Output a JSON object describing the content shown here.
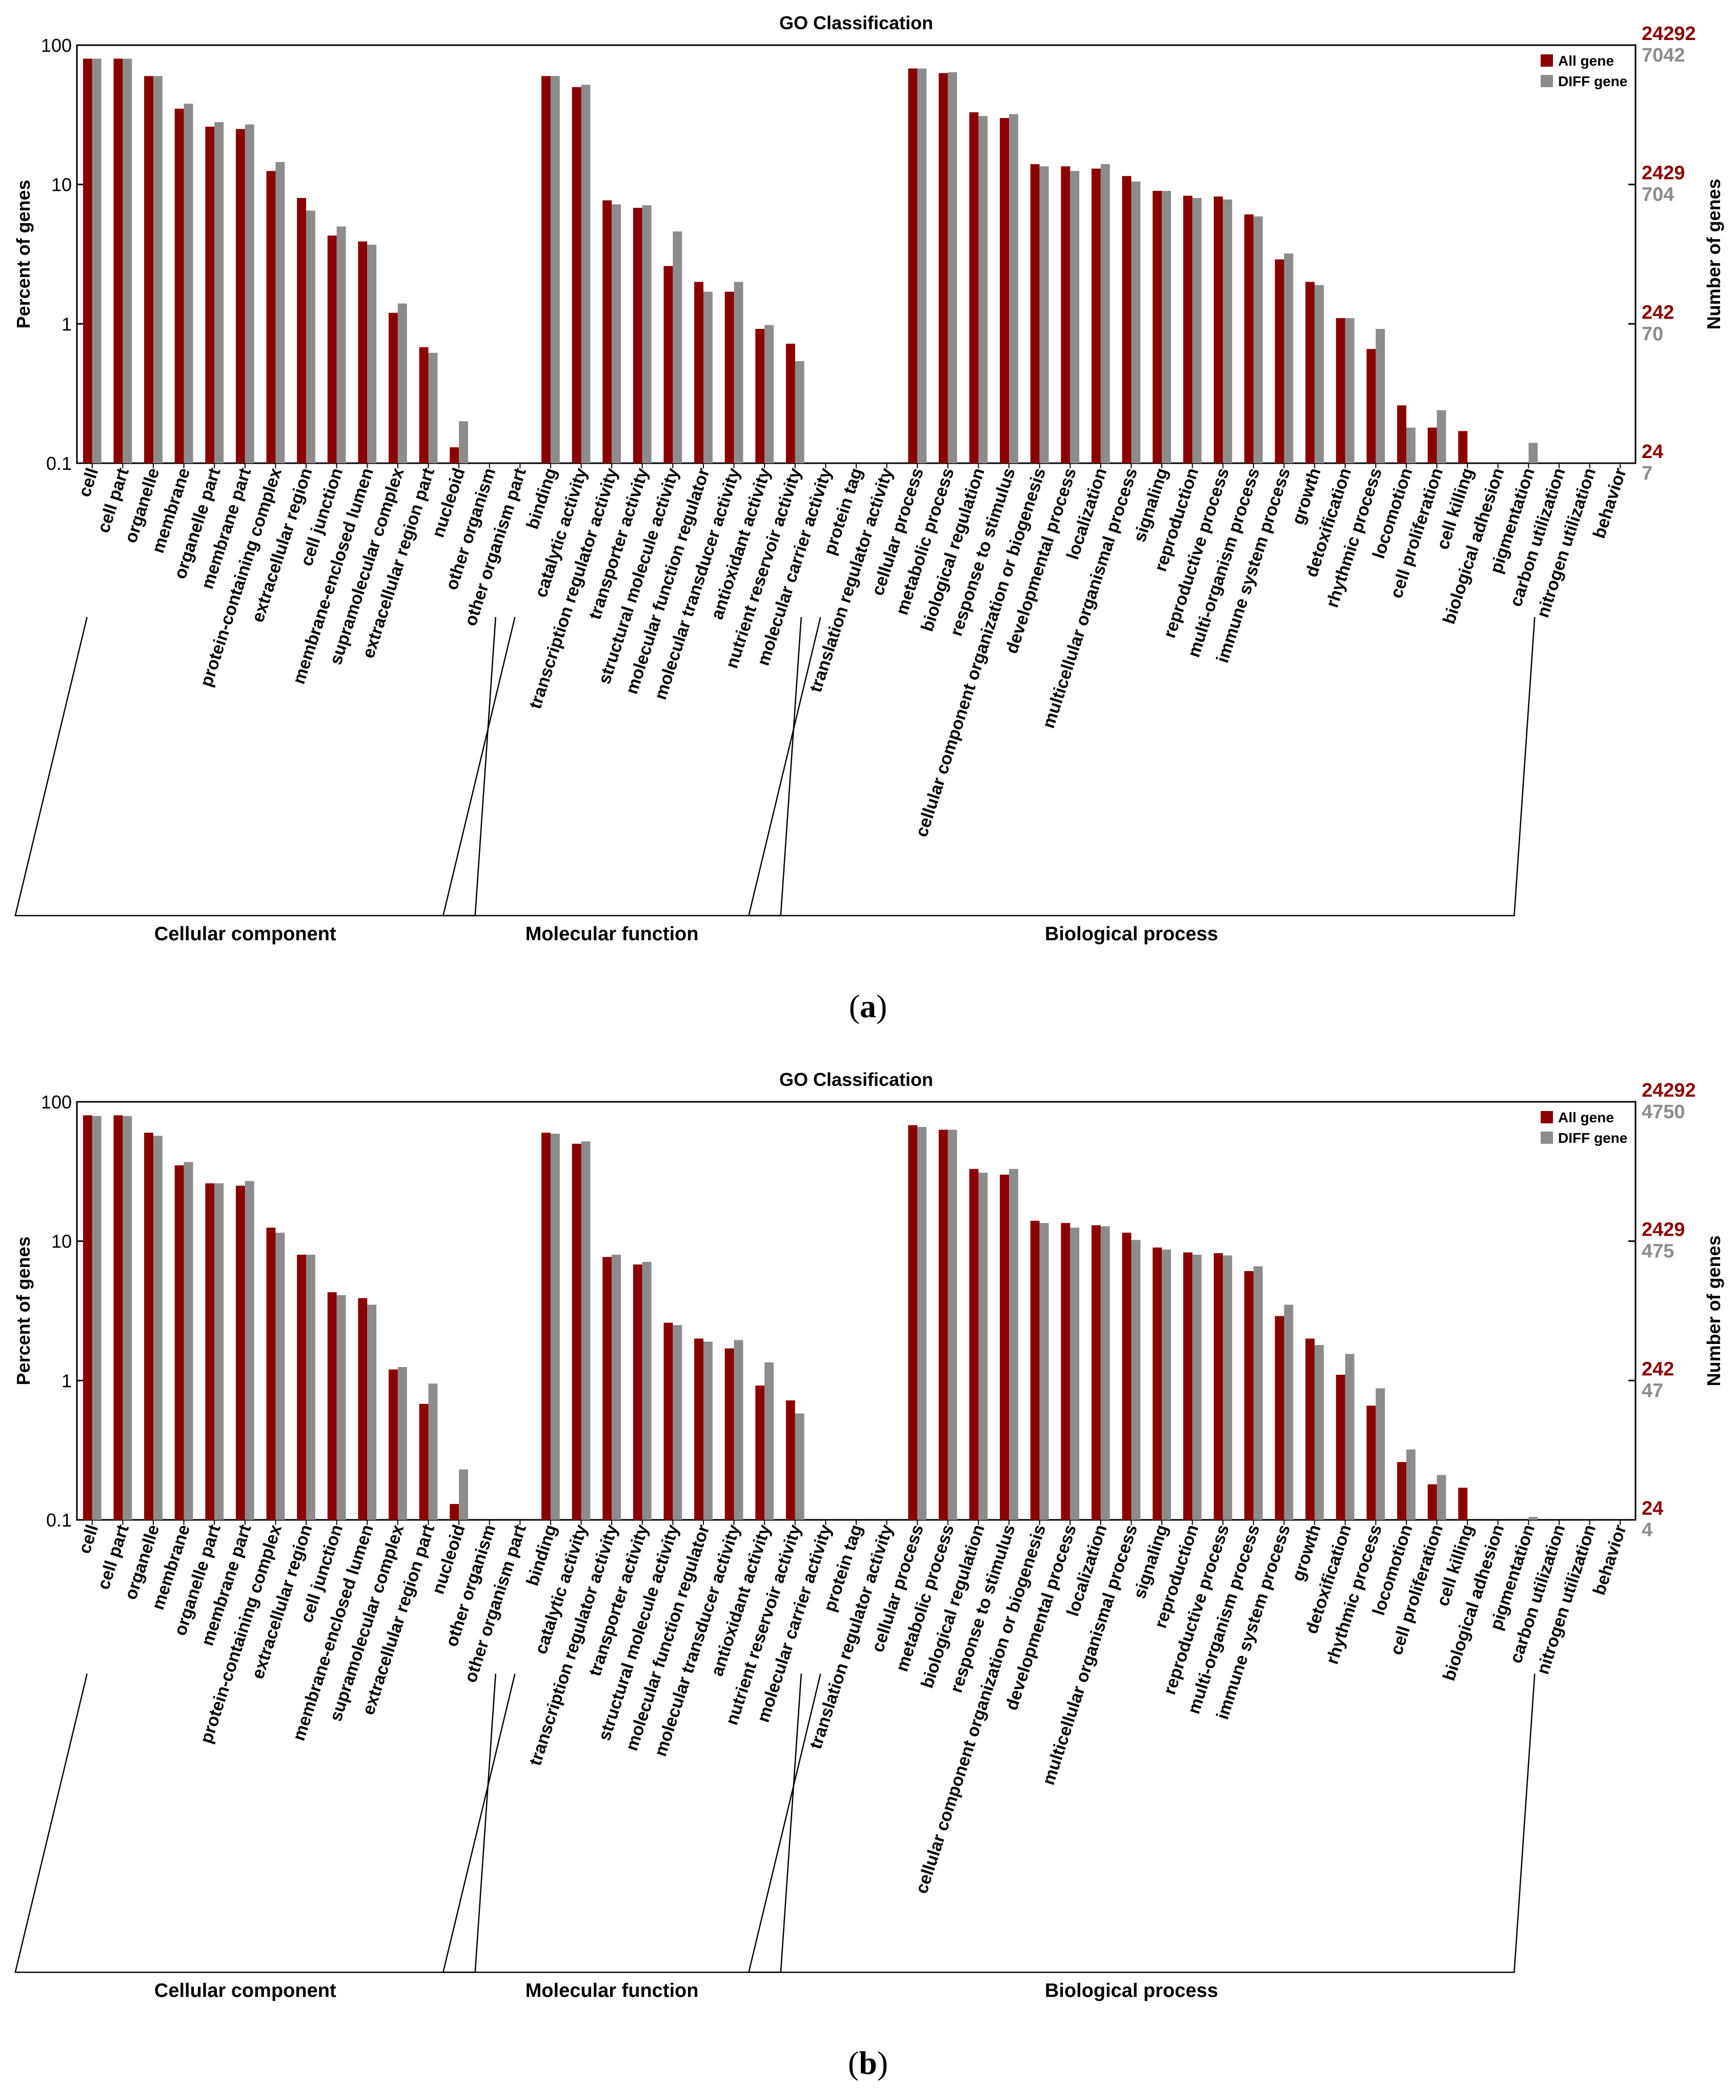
{
  "colors": {
    "all": "#8b0000",
    "diff": "#8c8c8c",
    "axis": "#000000",
    "right_red": "#8b0000",
    "right_gray": "#8c8c8c"
  },
  "labels": {
    "a": "a",
    "b": "b"
  },
  "chart_data": [
    {
      "type": "bar",
      "title": "GO Classification",
      "ylabel": "Percent of genes",
      "ylabel_right": "Number of genes",
      "yscale": "log",
      "ylim": [
        0.1,
        100
      ],
      "yticks": [
        "100",
        "10",
        "1",
        "0.1"
      ],
      "right_ticks_all": [
        "24292",
        "2429",
        "242",
        "24"
      ],
      "right_ticks_diff": [
        "7042",
        "704",
        "70",
        "7"
      ],
      "legend": [
        "All gene",
        "DIFF gene"
      ],
      "groups": [
        {
          "name": "Cellular component",
          "start": 0,
          "end": 13
        },
        {
          "name": "Molecular function",
          "start": 14,
          "end": 23
        },
        {
          "name": "Biological process",
          "start": 24,
          "end": 47
        }
      ],
      "categories": [
        "cell",
        "cell part",
        "organelle",
        "membrane",
        "organelle part",
        "membrane part",
        "protein-containing complex",
        "extracellular region",
        "cell junction",
        "membrane-enclosed lumen",
        "supramolecular complex",
        "extracellular region part",
        "nucleoid",
        "other organism",
        "other organism part",
        "binding",
        "catalytic activity",
        "transcription regulator activity",
        "transporter activity",
        "structural molecule activity",
        "molecular function regulator",
        "molecular transducer activity",
        "antioxidant activity",
        "nutrient reservoir activity",
        "molecular carrier activity",
        "protein tag",
        "translation regulator activity",
        "cellular process",
        "metabolic process",
        "biological regulation",
        "response to stimulus",
        "cellular component organization or biogenesis",
        "developmental process",
        "localization",
        "multicellular organismal process",
        "signaling",
        "reproduction",
        "reproductive process",
        "multi-organism process",
        "immune system process",
        "growth",
        "detoxification",
        "rhythmic process",
        "locomotion",
        "cell proliferation",
        "cell killing",
        "biological adhesion",
        "pigmentation",
        "carbon utilization",
        "nitrogen utilization",
        "behavior"
      ],
      "series": [
        {
          "name": "All gene",
          "values": [
            80,
            80,
            60,
            35,
            26,
            25,
            12.5,
            8,
            4.3,
            3.9,
            1.2,
            0.68,
            0.13,
            null,
            null,
            60,
            50,
            7.7,
            6.8,
            2.6,
            2.0,
            1.7,
            0.92,
            0.72,
            0.1,
            null,
            null,
            68,
            63,
            33,
            30,
            14,
            13.5,
            13,
            11.5,
            9,
            8.3,
            8.2,
            6.1,
            2.9,
            2.0,
            1.1,
            0.66,
            0.26,
            0.18,
            0.17,
            null,
            null,
            null,
            null,
            null
          ]
        },
        {
          "name": "DIFF gene",
          "values": [
            80,
            80,
            60,
            38,
            28,
            27,
            14.5,
            6.5,
            5.0,
            3.7,
            1.4,
            0.62,
            0.2,
            null,
            null,
            60,
            52,
            7.2,
            7.1,
            4.6,
            1.7,
            2.0,
            0.98,
            0.54,
            null,
            null,
            null,
            68,
            64,
            31,
            32,
            13.5,
            12.5,
            14,
            10.5,
            9,
            8.0,
            7.8,
            5.9,
            3.2,
            1.9,
            1.1,
            0.92,
            0.18,
            0.24,
            null,
            null,
            0.14,
            null,
            null,
            null
          ]
        }
      ]
    },
    {
      "type": "bar",
      "title": "GO Classification",
      "ylabel": "Percent of genes",
      "ylabel_right": "Number of genes",
      "yscale": "log",
      "ylim": [
        0.1,
        100
      ],
      "yticks": [
        "100",
        "10",
        "1",
        "0.1"
      ],
      "right_ticks_all": [
        "24292",
        "2429",
        "242",
        "24"
      ],
      "right_ticks_diff": [
        "4750",
        "475",
        "47",
        "4"
      ],
      "legend": [
        "All gene",
        "DIFF gene"
      ],
      "groups": [
        {
          "name": "Cellular component",
          "start": 0,
          "end": 13
        },
        {
          "name": "Molecular function",
          "start": 14,
          "end": 23
        },
        {
          "name": "Biological process",
          "start": 24,
          "end": 47
        }
      ],
      "categories": [
        "cell",
        "cell part",
        "organelle",
        "membrane",
        "organelle part",
        "membrane part",
        "protein-containing complex",
        "extracellular region",
        "cell junction",
        "membrane-enclosed lumen",
        "supramolecular complex",
        "extracellular region part",
        "nucleoid",
        "other organism",
        "other organism part",
        "binding",
        "catalytic activity",
        "transcription regulator activity",
        "transporter activity",
        "structural molecule activity",
        "molecular function regulator",
        "molecular transducer activity",
        "antioxidant activity",
        "nutrient reservoir activity",
        "molecular carrier activity",
        "protein tag",
        "translation regulator activity",
        "cellular process",
        "metabolic process",
        "biological regulation",
        "response to stimulus",
        "cellular component organization or biogenesis",
        "developmental process",
        "localization",
        "multicellular organismal process",
        "signaling",
        "reproduction",
        "reproductive process",
        "multi-organism process",
        "immune system process",
        "growth",
        "detoxification",
        "rhythmic process",
        "locomotion",
        "cell proliferation",
        "cell killing",
        "biological adhesion",
        "pigmentation",
        "carbon utilization",
        "nitrogen utilization",
        "behavior"
      ],
      "series": [
        {
          "name": "All gene",
          "values": [
            80,
            80,
            60,
            35,
            26,
            25,
            12.5,
            8,
            4.3,
            3.9,
            1.2,
            0.68,
            0.13,
            null,
            null,
            60,
            50,
            7.7,
            6.8,
            2.6,
            2.0,
            1.7,
            0.92,
            0.72,
            0.1,
            null,
            null,
            68,
            63,
            33,
            30,
            14,
            13.5,
            13,
            11.5,
            9,
            8.3,
            8.2,
            6.1,
            2.9,
            2.0,
            1.1,
            0.66,
            0.26,
            0.18,
            0.17,
            null,
            null,
            null,
            null,
            null
          ]
        },
        {
          "name": "DIFF gene",
          "values": [
            79,
            79,
            57,
            37,
            26,
            27,
            11.5,
            8,
            4.1,
            3.5,
            1.25,
            0.95,
            0.23,
            null,
            null,
            59,
            52,
            8.0,
            7.1,
            2.5,
            1.9,
            1.95,
            1.35,
            0.58,
            null,
            null,
            null,
            66,
            63,
            31,
            33,
            13.5,
            12.5,
            12.8,
            10.2,
            8.7,
            8.0,
            7.9,
            6.6,
            3.5,
            1.8,
            1.55,
            0.88,
            0.32,
            0.21,
            null,
            null,
            0.105,
            null,
            null,
            null
          ]
        }
      ]
    }
  ]
}
